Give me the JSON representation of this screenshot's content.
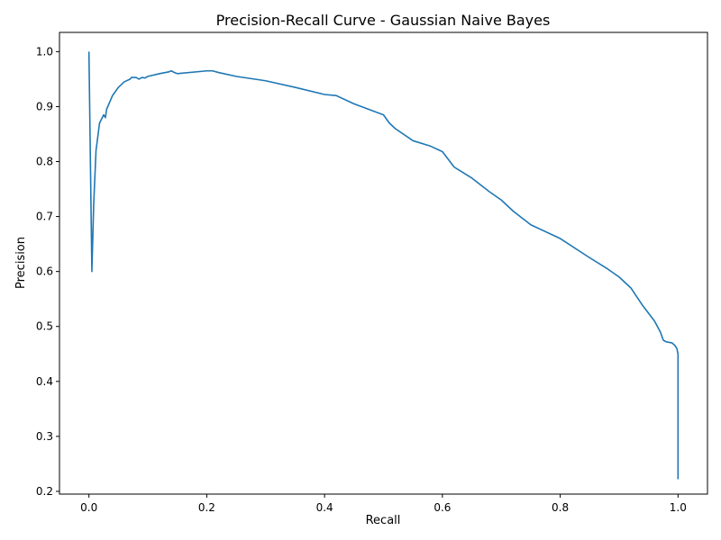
{
  "chart_data": {
    "type": "line",
    "title": "Precision-Recall Curve - Gaussian Naive Bayes",
    "xlabel": "Recall",
    "ylabel": "Precision",
    "xlim": [
      -0.05,
      1.05
    ],
    "ylim": [
      0.195,
      1.035
    ],
    "xticks": [
      0.0,
      0.2,
      0.4,
      0.6,
      0.8,
      1.0
    ],
    "xtick_labels": [
      "0.0",
      "0.2",
      "0.4",
      "0.6",
      "0.8",
      "1.0"
    ],
    "yticks": [
      0.2,
      0.3,
      0.4,
      0.5,
      0.6,
      0.7,
      0.8,
      0.9,
      1.0
    ],
    "ytick_labels": [
      "0.2",
      "0.3",
      "0.4",
      "0.5",
      "0.6",
      "0.7",
      "0.8",
      "0.9",
      "1.0"
    ],
    "grid": false,
    "legend": "none",
    "colors": {
      "series": "#1f77b4"
    },
    "series": [
      {
        "x": [
          0.0,
          0.005,
          0.008,
          0.012,
          0.018,
          0.025,
          0.028,
          0.03,
          0.04,
          0.05,
          0.06,
          0.07,
          0.072,
          0.08,
          0.085,
          0.09,
          0.095,
          0.1,
          0.12,
          0.135,
          0.14,
          0.145,
          0.15,
          0.2,
          0.21,
          0.22,
          0.25,
          0.3,
          0.35,
          0.4,
          0.42,
          0.45,
          0.5,
          0.51,
          0.52,
          0.55,
          0.58,
          0.6,
          0.62,
          0.65,
          0.68,
          0.7,
          0.72,
          0.75,
          0.8,
          0.85,
          0.88,
          0.9,
          0.92,
          0.94,
          0.96,
          0.97,
          0.975,
          0.98,
          0.99,
          0.995,
          0.998,
          1.0,
          1.0
        ],
        "y": [
          1.0,
          0.6,
          0.72,
          0.82,
          0.87,
          0.885,
          0.88,
          0.895,
          0.92,
          0.935,
          0.945,
          0.95,
          0.953,
          0.953,
          0.95,
          0.953,
          0.952,
          0.955,
          0.96,
          0.963,
          0.965,
          0.962,
          0.96,
          0.965,
          0.965,
          0.962,
          0.955,
          0.947,
          0.935,
          0.922,
          0.92,
          0.905,
          0.885,
          0.87,
          0.86,
          0.838,
          0.828,
          0.818,
          0.79,
          0.77,
          0.745,
          0.73,
          0.71,
          0.685,
          0.66,
          0.625,
          0.605,
          0.59,
          0.57,
          0.538,
          0.51,
          0.49,
          0.475,
          0.472,
          0.47,
          0.465,
          0.46,
          0.45,
          0.222
        ]
      }
    ]
  }
}
